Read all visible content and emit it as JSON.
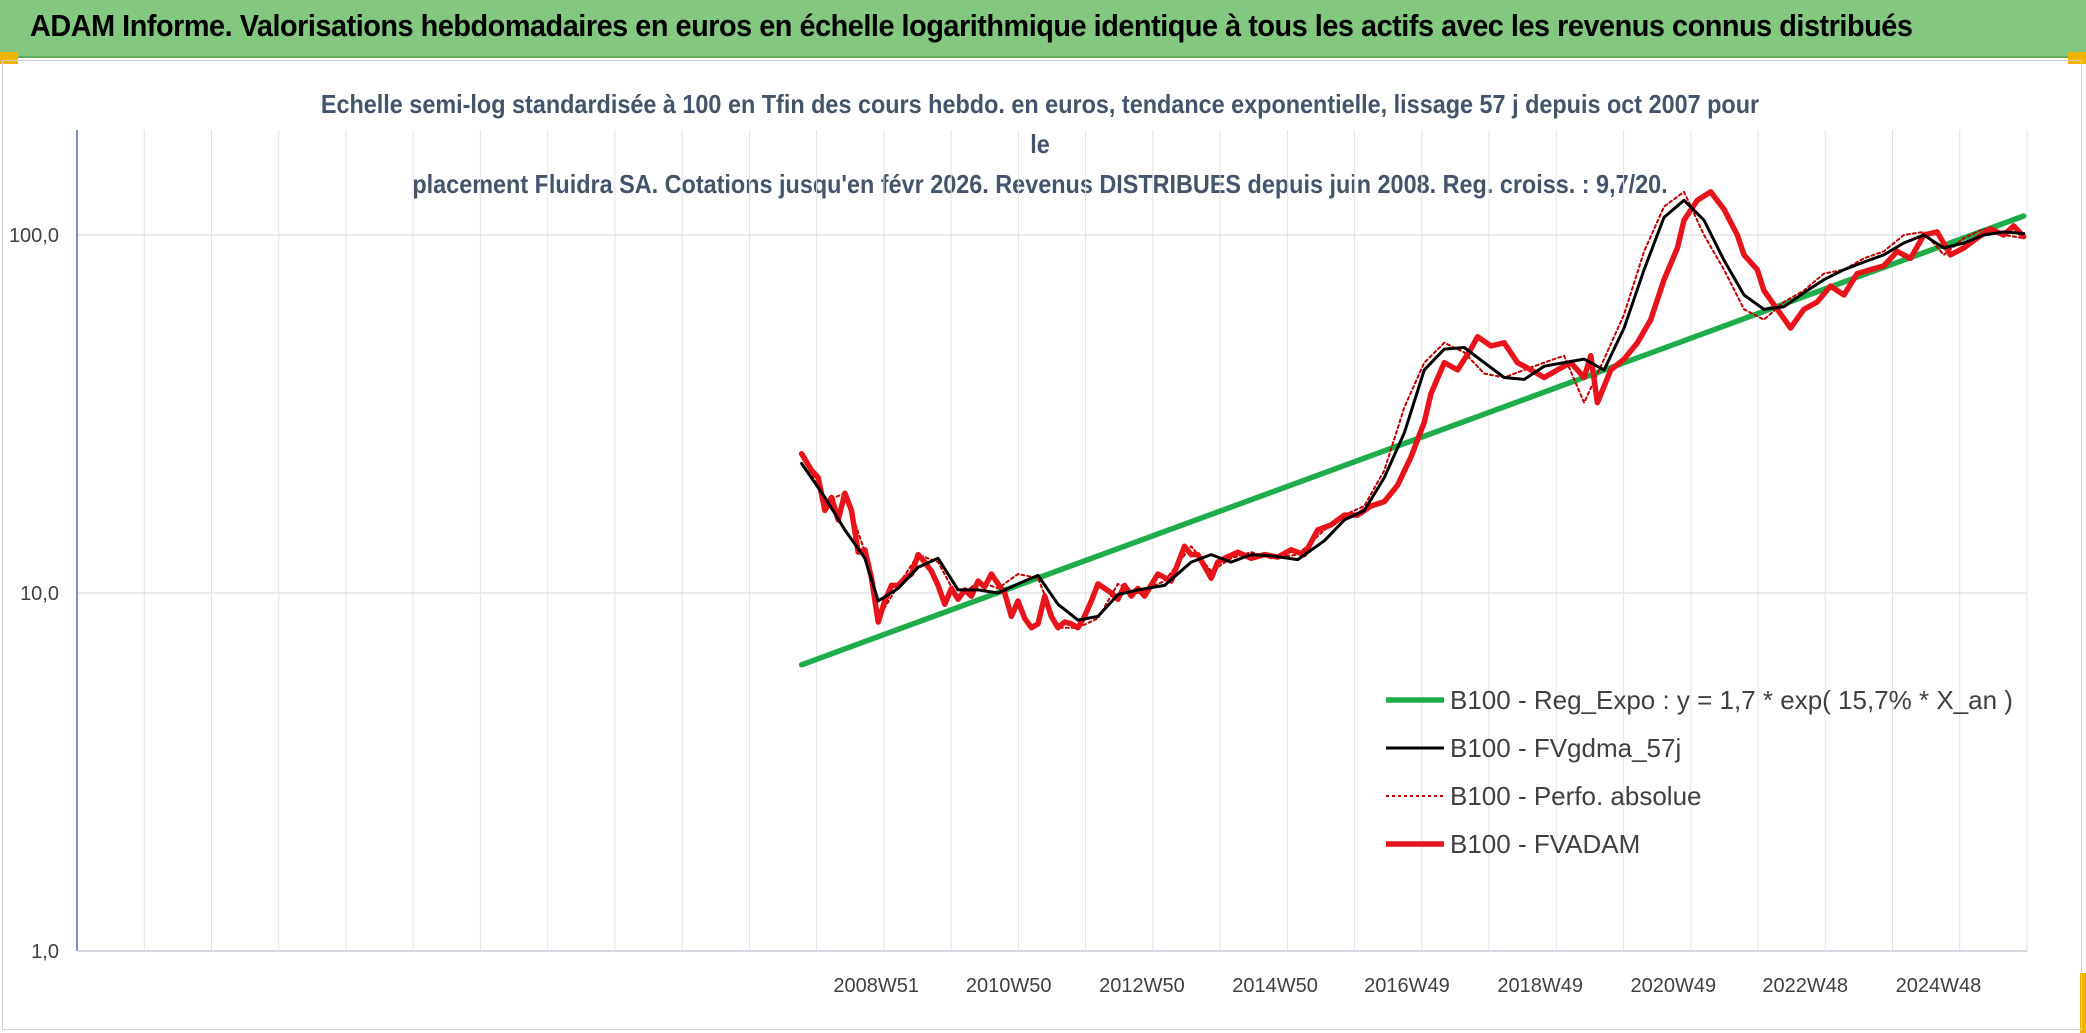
{
  "banner": {
    "title": "ADAM Informe. Valorisations hebdomadaires en euros en échelle logarithmique identique à tous les actifs avec les revenus connus distribués"
  },
  "colors": {
    "banner_bg": "#82c87e",
    "corner_accent": "#f0b400",
    "trend": "#1fad4c",
    "smoothed": "#000000",
    "absolute": "#c00000",
    "fvadam": "#e8141b",
    "subtitle": "#44546a"
  },
  "chart_data": {
    "type": "line",
    "title_line1": "Echelle semi-log standardisée à 100 en Tfin des cours hebdo. en euros, tendance exponentielle, lissage 57 j depuis oct 2007 pour le",
    "title_line2": "placement Fluidra SA. Cotations jusqu'en févr 2026. Revenus DISTRIBUES depuis juin 2008. Reg. croiss. : 9,7/20.",
    "y_scale": "log",
    "ylim": [
      1,
      180
    ],
    "y_ticks": [
      "1,0",
      "10,0",
      "100,0"
    ],
    "x_ticks": [
      "2008W51",
      "2010W50",
      "2012W50",
      "2014W50",
      "2016W49",
      "2018W49",
      "2020W49",
      "2022W48",
      "2024W48"
    ],
    "x_tick_years": [
      2008.97,
      2010.96,
      2012.96,
      2014.96,
      2016.94,
      2018.94,
      2020.94,
      2022.92,
      2024.92
    ],
    "xlim": [
      1996.97,
      2026.25
    ],
    "grid": true,
    "legend_position": "right",
    "series": [
      {
        "name": "B100 - Reg_Expo : y = 1,7 * exp( 15,7% *  X_an )",
        "style": "solid-thick",
        "color": "#1fad4c",
        "x": [
          2007.85,
          2026.2
        ],
        "y": [
          6.3,
          113
        ]
      },
      {
        "name": "B100 - FVgdma_57j",
        "style": "solid",
        "color": "#000000",
        "x": [
          2007.85,
          2008.2,
          2008.5,
          2008.8,
          2009.0,
          2009.3,
          2009.6,
          2009.9,
          2010.2,
          2010.5,
          2010.8,
          2011.1,
          2011.4,
          2011.7,
          2012.0,
          2012.3,
          2012.6,
          2012.9,
          2013.3,
          2013.7,
          2014.0,
          2014.3,
          2014.6,
          2014.9,
          2015.3,
          2015.7,
          2016.0,
          2016.3,
          2016.6,
          2016.9,
          2017.2,
          2017.5,
          2017.8,
          2018.1,
          2018.4,
          2018.7,
          2019.0,
          2019.3,
          2019.6,
          2019.9,
          2020.2,
          2020.5,
          2020.8,
          2021.1,
          2021.4,
          2021.7,
          2022.0,
          2022.3,
          2022.6,
          2022.9,
          2023.2,
          2023.5,
          2023.8,
          2024.1,
          2024.4,
          2024.7,
          2025.0,
          2025.3,
          2025.6,
          2025.9,
          2026.2
        ],
        "y": [
          23,
          18.5,
          15,
          12.5,
          9.5,
          10.3,
          11.8,
          12.5,
          10.2,
          10.2,
          10.0,
          10.6,
          11.2,
          9.3,
          8.4,
          8.6,
          9.9,
          10.2,
          10.5,
          12.2,
          12.8,
          12.2,
          12.8,
          12.7,
          12.4,
          14.0,
          16.0,
          17.0,
          21.0,
          28.0,
          42.0,
          48.0,
          48.5,
          44.0,
          40.0,
          39.5,
          43.0,
          44.0,
          45.0,
          42.0,
          55.0,
          80.0,
          112.0,
          125.0,
          110.0,
          85.0,
          68.0,
          62.0,
          63.0,
          69.0,
          75.0,
          80.0,
          84.0,
          88.0,
          95.0,
          100.0,
          92.0,
          95.0,
          100.0,
          102.0,
          101.0
        ]
      },
      {
        "name": "B100 - Perfo. absolue",
        "style": "dotted",
        "color": "#c00000",
        "x": [
          2007.85,
          2008.2,
          2008.5,
          2008.8,
          2009.0,
          2009.3,
          2009.6,
          2009.9,
          2010.2,
          2010.5,
          2010.8,
          2011.1,
          2011.4,
          2011.7,
          2012.0,
          2012.3,
          2012.6,
          2012.9,
          2013.3,
          2013.7,
          2014.0,
          2014.3,
          2014.6,
          2014.9,
          2015.3,
          2015.7,
          2016.0,
          2016.3,
          2016.6,
          2016.9,
          2017.2,
          2017.5,
          2017.8,
          2018.1,
          2018.4,
          2018.7,
          2019.0,
          2019.3,
          2019.6,
          2019.9,
          2020.2,
          2020.5,
          2020.8,
          2021.1,
          2021.4,
          2021.7,
          2022.0,
          2022.3,
          2022.6,
          2022.9,
          2023.2,
          2023.5,
          2023.8,
          2024.1,
          2024.4,
          2024.7,
          2025.0,
          2025.3,
          2025.6,
          2025.9,
          2026.2
        ],
        "y": [
          24.5,
          18,
          19,
          13,
          8.5,
          10.5,
          12.8,
          12.2,
          9.6,
          10.8,
          10.3,
          11.3,
          11.0,
          8.0,
          8.0,
          8.5,
          10.6,
          10.0,
          10.8,
          13.5,
          11.5,
          12.5,
          13.0,
          12.5,
          12.8,
          15.0,
          16.5,
          17.5,
          22.0,
          33.0,
          44.0,
          50.0,
          47.0,
          41.0,
          40.0,
          42.0,
          44.0,
          46.0,
          34.0,
          45.0,
          60.0,
          90.0,
          120.0,
          132.0,
          100.0,
          80.0,
          62.0,
          58.0,
          65.0,
          70.0,
          78.0,
          80.0,
          86.0,
          90.0,
          100.0,
          102.0,
          88.0,
          98.0,
          104.0,
          100.0,
          98.0
        ]
      },
      {
        "name": "B100 - FVADAM",
        "style": "solid-thick",
        "color": "#e8141b",
        "x": [
          2007.85,
          2008.0,
          2008.1,
          2008.2,
          2008.3,
          2008.4,
          2008.5,
          2008.6,
          2008.7,
          2008.8,
          2008.9,
          2009.0,
          2009.1,
          2009.2,
          2009.3,
          2009.4,
          2009.5,
          2009.6,
          2009.7,
          2009.8,
          2009.9,
          2010.0,
          2010.1,
          2010.2,
          2010.3,
          2010.4,
          2010.5,
          2010.6,
          2010.7,
          2010.8,
          2010.9,
          2011.0,
          2011.1,
          2011.2,
          2011.3,
          2011.4,
          2011.5,
          2011.6,
          2011.7,
          2011.8,
          2011.9,
          2012.0,
          2012.1,
          2012.2,
          2012.3,
          2012.4,
          2012.5,
          2012.6,
          2012.7,
          2012.8,
          2012.9,
          2013.0,
          2013.2,
          2013.4,
          2013.6,
          2013.7,
          2013.8,
          2014.0,
          2014.1,
          2014.2,
          2014.4,
          2014.6,
          2014.8,
          2015.0,
          2015.2,
          2015.4,
          2015.6,
          2015.8,
          2016.0,
          2016.2,
          2016.4,
          2016.6,
          2016.8,
          2017.0,
          2017.2,
          2017.3,
          2017.5,
          2017.7,
          2017.9,
          2018.0,
          2018.2,
          2018.4,
          2018.6,
          2018.8,
          2019.0,
          2019.2,
          2019.4,
          2019.6,
          2019.7,
          2019.8,
          2020.0,
          2020.2,
          2020.4,
          2020.6,
          2020.8,
          2021.0,
          2021.1,
          2021.3,
          2021.5,
          2021.7,
          2021.9,
          2022.0,
          2022.2,
          2022.3,
          2022.5,
          2022.7,
          2022.9,
          2023.1,
          2023.3,
          2023.5,
          2023.7,
          2023.9,
          2024.1,
          2024.3,
          2024.5,
          2024.7,
          2024.9,
          2025.1,
          2025.3,
          2025.5,
          2025.7,
          2025.9,
          2026.05,
          2026.2
        ],
        "y": [
          24.5,
          22,
          21,
          17,
          18.5,
          16,
          19,
          17,
          13,
          13.2,
          11,
          8.3,
          9.5,
          10.5,
          10.5,
          11,
          11.3,
          12.8,
          12.2,
          11.5,
          10.5,
          9.3,
          10.3,
          9.6,
          10.2,
          9.8,
          10.8,
          10.4,
          11.3,
          10.6,
          10.0,
          8.6,
          9.5,
          8.5,
          8.0,
          8.2,
          9.8,
          8.6,
          8.0,
          8.3,
          8.2,
          8.0,
          8.6,
          9.5,
          10.6,
          10.3,
          10.0,
          9.6,
          10.5,
          9.8,
          10.3,
          9.8,
          11.3,
          10.8,
          13.5,
          12.8,
          12.8,
          11.0,
          12.2,
          12.5,
          13.0,
          12.5,
          12.8,
          12.6,
          13.2,
          12.8,
          15.0,
          15.5,
          16.5,
          16.5,
          17.5,
          18.0,
          20.0,
          24.0,
          30.0,
          36.0,
          44.0,
          42.0,
          48.0,
          52.0,
          49.0,
          50.0,
          44.0,
          42.0,
          40.0,
          42.0,
          44.0,
          40.0,
          46.0,
          34.0,
          42.0,
          45.0,
          50.0,
          58.0,
          75.0,
          92.0,
          110.0,
          125.0,
          132.0,
          118.0,
          100.0,
          88.0,
          80.0,
          70.0,
          62.0,
          55.0,
          62.0,
          65.0,
          72.0,
          68.0,
          78.0,
          80.0,
          82.0,
          90.0,
          86.0,
          100.0,
          102.0,
          88.0,
          92.0,
          98.0,
          104.0,
          100.0,
          106.0,
          99.0
        ]
      }
    ]
  }
}
